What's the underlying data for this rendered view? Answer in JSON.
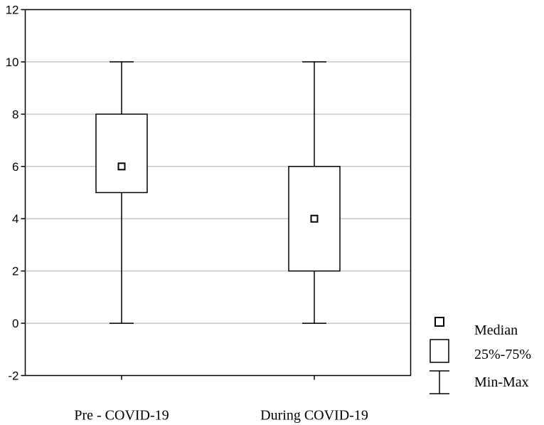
{
  "chart_data": {
    "type": "boxplot",
    "title": "",
    "xlabel": "",
    "ylabel": "",
    "ylim": [
      -2,
      12
    ],
    "yticks": [
      -2,
      0,
      2,
      4,
      6,
      8,
      10,
      12
    ],
    "grid": true,
    "categories": [
      "Pre - COVID-19",
      "During COVID-19"
    ],
    "boxes": [
      {
        "category": "Pre - COVID-19",
        "min": 0,
        "q1": 5,
        "median": 6,
        "q3": 8,
        "max": 10
      },
      {
        "category": "During COVID-19",
        "min": 0,
        "q1": 2,
        "median": 4,
        "q3": 6,
        "max": 10
      }
    ],
    "legend": {
      "placement": "bottom-right",
      "items": [
        {
          "symbol": "median",
          "label": "Median"
        },
        {
          "symbol": "box",
          "label": "25%-75%"
        },
        {
          "symbol": "whisker",
          "label": "Min-Max"
        }
      ]
    },
    "colors": {
      "stroke": "#000000",
      "grid": "#c8c8c8",
      "fill": "#ffffff"
    }
  }
}
